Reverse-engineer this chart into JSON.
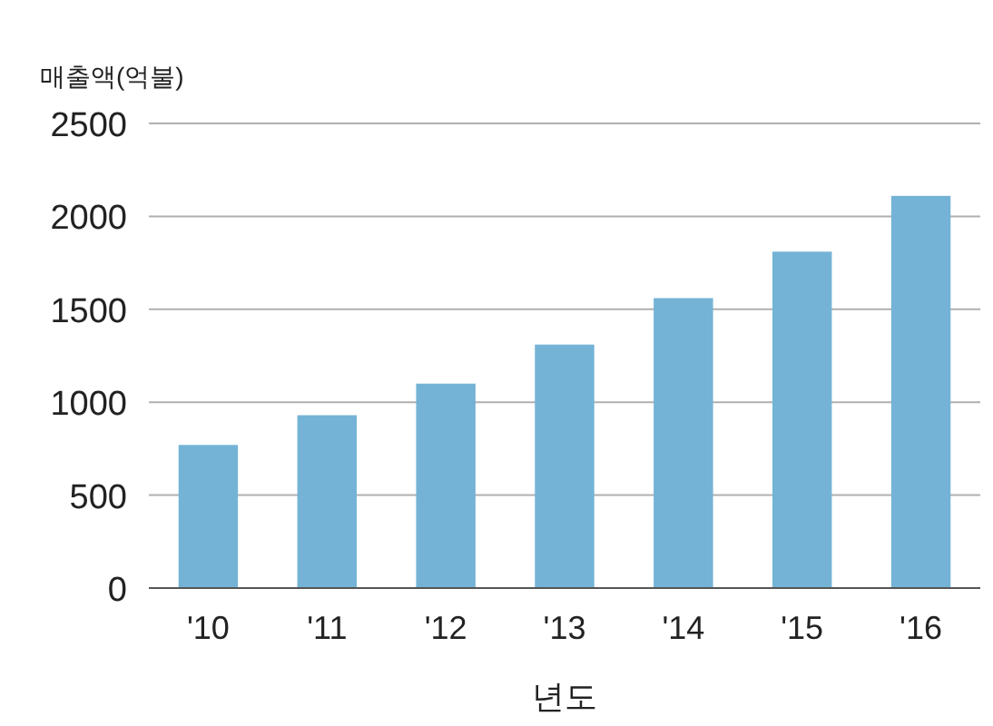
{
  "chart_data": {
    "type": "bar",
    "ylabel": "매출액(억불)",
    "xlabel": "년도",
    "categories": [
      "'10",
      "'11",
      "'12",
      "'13",
      "'14",
      "'15",
      "'16"
    ],
    "values": [
      770,
      930,
      1100,
      1310,
      1560,
      1810,
      2110
    ],
    "color": "#74b3d6",
    "ylim": [
      0,
      2500
    ],
    "yticks": [
      0,
      500,
      1000,
      1500,
      2000,
      2500
    ],
    "grid": "y"
  }
}
